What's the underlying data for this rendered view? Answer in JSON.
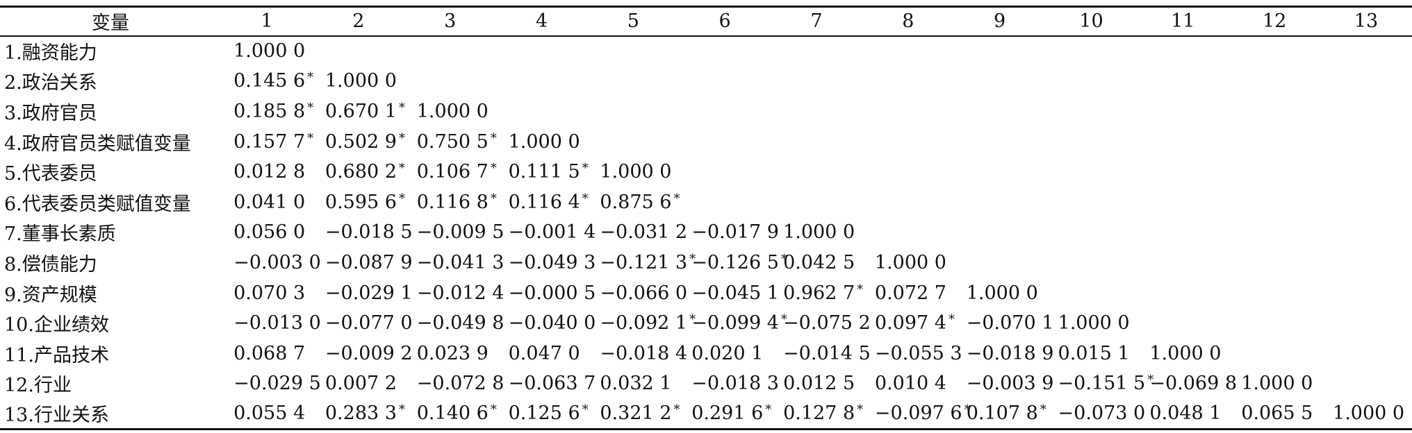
{
  "table": {
    "header": [
      "变量",
      "1",
      "2",
      "3",
      "4",
      "5",
      "6",
      "7",
      "8",
      "9",
      "10",
      "11",
      "12",
      "13"
    ],
    "rows": [
      {
        "label": "1.融资能力",
        "cells": [
          {
            "v": "1.000 0",
            "s": ""
          }
        ]
      },
      {
        "label": "2.政治关系",
        "cells": [
          {
            "v": "0.145 6",
            "s": "*"
          },
          {
            "v": "1.000 0",
            "s": ""
          }
        ]
      },
      {
        "label": "3.政府官员",
        "cells": [
          {
            "v": "0.185 8",
            "s": "*"
          },
          {
            "v": "0.670 1",
            "s": "*"
          },
          {
            "v": "1.000 0",
            "s": ""
          }
        ]
      },
      {
        "label": "4.政府官员类赋值变量",
        "cells": [
          {
            "v": "0.157 7",
            "s": "*"
          },
          {
            "v": "0.502 9",
            "s": "*"
          },
          {
            "v": "0.750 5",
            "s": "*"
          },
          {
            "v": "1.000 0",
            "s": ""
          }
        ]
      },
      {
        "label": "5.代表委员",
        "cells": [
          {
            "v": "0.012 8",
            "s": ""
          },
          {
            "v": "0.680 2",
            "s": "*"
          },
          {
            "v": "0.106 7",
            "s": "*"
          },
          {
            "v": "0.111 5",
            "s": "*"
          },
          {
            "v": "1.000 0",
            "s": ""
          }
        ]
      },
      {
        "label": "6.代表委员类赋值变量",
        "cells": [
          {
            "v": "0.041 0",
            "s": ""
          },
          {
            "v": "0.595 6",
            "s": "*"
          },
          {
            "v": "0.116 8",
            "s": "*"
          },
          {
            "v": "0.116 4",
            "s": "*"
          },
          {
            "v": "0.875 6",
            "s": "*"
          }
        ]
      },
      {
        "label": "7.董事长素质",
        "cells": [
          {
            "v": "0.056 0",
            "s": ""
          },
          {
            "v": "−0.018 5",
            "s": ""
          },
          {
            "v": "−0.009 5",
            "s": ""
          },
          {
            "v": "−0.001 4",
            "s": ""
          },
          {
            "v": "−0.031 2",
            "s": ""
          },
          {
            "v": "−0.017 9",
            "s": ""
          },
          {
            "v": "1.000 0",
            "s": ""
          }
        ]
      },
      {
        "label": "8.偿债能力",
        "cells": [
          {
            "v": "−0.003 0",
            "s": ""
          },
          {
            "v": "−0.087 9",
            "s": ""
          },
          {
            "v": "−0.041 3",
            "s": ""
          },
          {
            "v": "−0.049 3",
            "s": ""
          },
          {
            "v": "−0.121 3",
            "s": "*"
          },
          {
            "v": "−0.126 5",
            "s": "*"
          },
          {
            "v": "0.042 5",
            "s": ""
          },
          {
            "v": "1.000 0",
            "s": ""
          }
        ]
      },
      {
        "label": "9.资产规模",
        "cells": [
          {
            "v": "0.070 3",
            "s": ""
          },
          {
            "v": "−0.029 1",
            "s": ""
          },
          {
            "v": "−0.012 4",
            "s": ""
          },
          {
            "v": "−0.000 5",
            "s": ""
          },
          {
            "v": "−0.066 0",
            "s": ""
          },
          {
            "v": "−0.045 1",
            "s": ""
          },
          {
            "v": "0.962 7",
            "s": "*"
          },
          {
            "v": "0.072 7",
            "s": ""
          },
          {
            "v": "1.000 0",
            "s": ""
          }
        ]
      },
      {
        "label": "10.企业绩效",
        "cells": [
          {
            "v": "−0.013 0",
            "s": ""
          },
          {
            "v": "−0.077 0",
            "s": ""
          },
          {
            "v": "−0.049 8",
            "s": ""
          },
          {
            "v": "−0.040 0",
            "s": ""
          },
          {
            "v": "−0.092 1",
            "s": "*"
          },
          {
            "v": "−0.099 4",
            "s": "*"
          },
          {
            "v": "−0.075 2",
            "s": ""
          },
          {
            "v": "0.097 4",
            "s": "*"
          },
          {
            "v": "−0.070 1",
            "s": ""
          },
          {
            "v": "1.000 0",
            "s": ""
          }
        ]
      },
      {
        "label": "11.产品技术",
        "cells": [
          {
            "v": "0.068 7",
            "s": ""
          },
          {
            "v": "−0.009 2",
            "s": ""
          },
          {
            "v": "0.023 9",
            "s": ""
          },
          {
            "v": "0.047 0",
            "s": ""
          },
          {
            "v": "−0.018 4",
            "s": ""
          },
          {
            "v": "0.020 1",
            "s": ""
          },
          {
            "v": "−0.014 5",
            "s": ""
          },
          {
            "v": "−0.055 3",
            "s": ""
          },
          {
            "v": "−0.018 9",
            "s": ""
          },
          {
            "v": "0.015 1",
            "s": ""
          },
          {
            "v": "1.000 0",
            "s": ""
          }
        ]
      },
      {
        "label": "12.行业",
        "cells": [
          {
            "v": "−0.029 5",
            "s": ""
          },
          {
            "v": "0.007 2",
            "s": ""
          },
          {
            "v": "−0.072 8",
            "s": ""
          },
          {
            "v": "−0.063 7",
            "s": ""
          },
          {
            "v": "0.032 1",
            "s": ""
          },
          {
            "v": "−0.018 3",
            "s": ""
          },
          {
            "v": "0.012 5",
            "s": ""
          },
          {
            "v": "0.010 4",
            "s": ""
          },
          {
            "v": "−0.003 9",
            "s": ""
          },
          {
            "v": "−0.151 5",
            "s": "*"
          },
          {
            "v": "−0.069 8",
            "s": ""
          },
          {
            "v": "1.000 0",
            "s": ""
          }
        ]
      },
      {
        "label": "13.行业关系",
        "cells": [
          {
            "v": "0.055 4",
            "s": ""
          },
          {
            "v": "0.283 3",
            "s": "*"
          },
          {
            "v": "0.140 6",
            "s": "*"
          },
          {
            "v": "0.125 6",
            "s": "*"
          },
          {
            "v": "0.321 2",
            "s": "*"
          },
          {
            "v": "0.291 6",
            "s": "*"
          },
          {
            "v": "0.127 8",
            "s": "*"
          },
          {
            "v": "−0.097 6",
            "s": "*"
          },
          {
            "v": "0.107 8",
            "s": "*"
          },
          {
            "v": "−0.073 0",
            "s": ""
          },
          {
            "v": "0.048 1",
            "s": ""
          },
          {
            "v": "0.065 5",
            "s": ""
          },
          {
            "v": "1.000 0",
            "s": ""
          }
        ]
      }
    ]
  }
}
